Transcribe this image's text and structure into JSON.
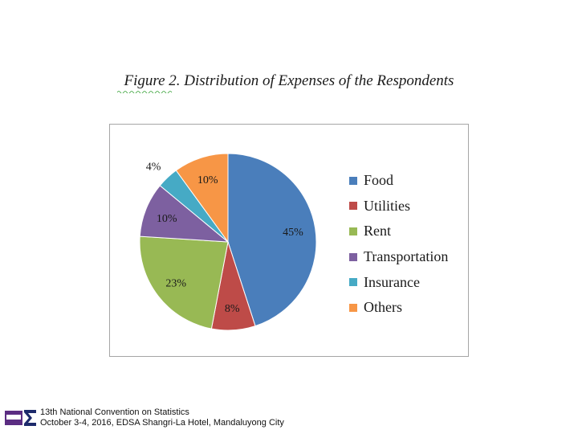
{
  "figure": {
    "title": "Figure 2. Distribution of Expenses of the Respondents"
  },
  "chart_data": {
    "type": "pie",
    "categories": [
      "Food",
      "Utilities",
      "Rent",
      "Transportation",
      "Insurance",
      "Others"
    ],
    "values": [
      45,
      8,
      23,
      10,
      4,
      10
    ],
    "labels": [
      "45%",
      "8%",
      "23%",
      "10%",
      "4%",
      "10%"
    ],
    "colors": [
      "#4a7ebb",
      "#be4b48",
      "#98b954",
      "#7d60a0",
      "#46aac5",
      "#f79646"
    ],
    "legend_position": "right",
    "title": ""
  },
  "footer": {
    "line1": "13th National Convention on Statistics",
    "line2": "October 3-4, 2016, EDSA Shangri-La Hotel, Mandaluyong City",
    "logo_icon": "sigma-logo-icon"
  }
}
